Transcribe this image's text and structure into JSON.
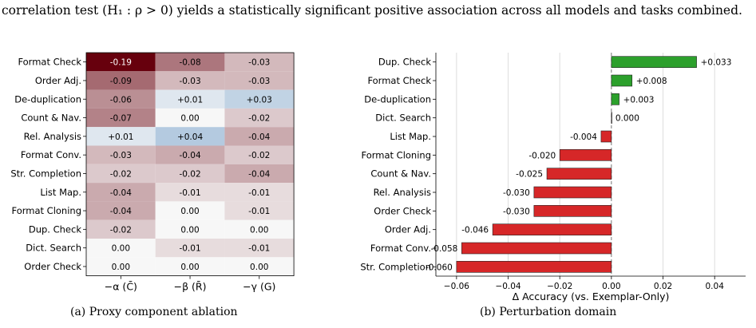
{
  "intro_text": "correlation test (H₁ : ρ > 0) yields a statistically significant positive association across all models and tasks combined.",
  "left_caption": "(a) Proxy component ablation",
  "right_caption": "(b) Perturbation domain",
  "colors": {
    "negative": "#67000d",
    "positive": "#2166ac",
    "bar_positive": "#2ca02c",
    "bar_negative": "#d62728"
  },
  "heatmap": {
    "rows": [
      "Format Check",
      "Order Adj.",
      "De-duplication",
      "Count & Nav.",
      "Rel. Analysis",
      "Format Conv.",
      "Str. Completion",
      "List Map.",
      "Format Cloning",
      "Dup. Check",
      "Dict. Search",
      "Order Check"
    ],
    "columns": [
      "−α (C̄)",
      "−β (R̄)",
      "−γ (G)"
    ],
    "cells": [
      [
        -0.19,
        -0.08,
        -0.03
      ],
      [
        -0.09,
        -0.03,
        -0.03
      ],
      [
        -0.06,
        0.01,
        0.03
      ],
      [
        -0.07,
        0.0,
        -0.02
      ],
      [
        0.01,
        0.04,
        -0.04
      ],
      [
        -0.03,
        -0.04,
        -0.02
      ],
      [
        -0.02,
        -0.02,
        -0.04
      ],
      [
        -0.04,
        -0.01,
        -0.01
      ],
      [
        -0.04,
        0.0,
        -0.01
      ],
      [
        -0.02,
        0.0,
        0.0
      ],
      [
        0.0,
        -0.01,
        -0.01
      ],
      [
        0.0,
        0.0,
        0.0
      ]
    ],
    "labels": [
      [
        "-0.19",
        "-0.08",
        "-0.03"
      ],
      [
        "-0.09",
        "-0.03",
        "-0.03"
      ],
      [
        "-0.06",
        "+0.01",
        "+0.03"
      ],
      [
        "-0.07",
        "0.00",
        "-0.02"
      ],
      [
        "+0.01",
        "+0.04",
        "-0.04"
      ],
      [
        "-0.03",
        "-0.04",
        "-0.02"
      ],
      [
        "-0.02",
        "-0.02",
        "-0.04"
      ],
      [
        "-0.04",
        "-0.01",
        "-0.01"
      ],
      [
        "-0.04",
        "0.00",
        "-0.01"
      ],
      [
        "-0.02",
        "0.00",
        "0.00"
      ],
      [
        "0.00",
        "-0.01",
        "-0.01"
      ],
      [
        "0.00",
        "0.00",
        "0.00"
      ]
    ]
  },
  "chart_data": {
    "type": "bar",
    "orientation": "horizontal",
    "categories": [
      "Dup. Check",
      "Format Check",
      "De-duplication",
      "Dict. Search",
      "List Map.",
      "Format Cloning",
      "Count & Nav.",
      "Rel. Analysis",
      "Order Check",
      "Order Adj.",
      "Format Conv.",
      "Str. Completion"
    ],
    "values": [
      0.033,
      0.008,
      0.003,
      0.0,
      -0.004,
      -0.02,
      -0.025,
      -0.03,
      -0.03,
      -0.046,
      -0.058,
      -0.06
    ],
    "value_labels": [
      "+0.033",
      "+0.008",
      "+0.003",
      "0.000",
      "-0.004",
      "-0.020",
      "-0.025",
      "-0.030",
      "-0.030",
      "-0.046",
      "-0.058",
      "-0.060"
    ],
    "xlabel": "Δ Accuracy (vs. Exemplar-Only)",
    "xlim": [
      -0.068,
      0.052
    ],
    "xticks": [
      -0.06,
      -0.04,
      -0.02,
      0.0,
      0.02,
      0.04
    ],
    "xtick_labels": [
      "−0.06",
      "−0.04",
      "−0.02",
      "0.00",
      "0.02",
      "0.04"
    ],
    "grid": "vertical",
    "zero_line": "dashed"
  }
}
